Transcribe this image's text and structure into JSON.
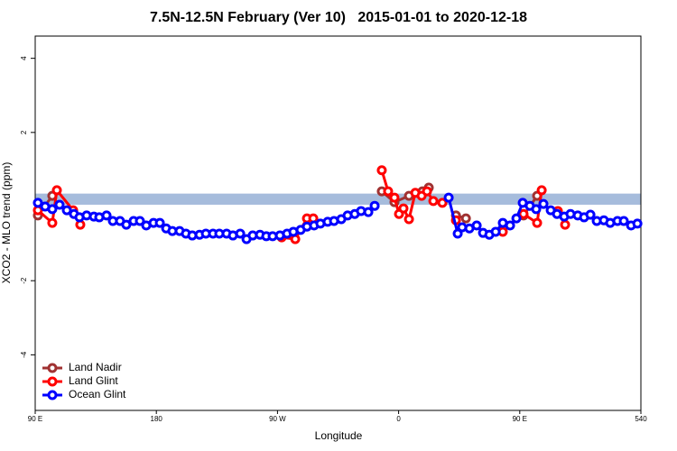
{
  "chart_data": {
    "type": "line",
    "title": "7.5N-12.5N February (Ver 10)   2015-01-01 to 2020-12-18",
    "xlabel": "Longitude",
    "ylabel": "XCO2 - MLO trend (ppm)",
    "xlim": [
      90,
      540
    ],
    "ylim": [
      -5.5,
      4.6
    ],
    "xticks": [
      {
        "value": 90,
        "label": "90 E"
      },
      180,
      {
        "value": 270,
        "label": "90 W"
      },
      {
        "value": 360,
        "label": "0"
      },
      {
        "value": 450,
        "label": "90 E"
      },
      540
    ],
    "yticks": [
      -4,
      -2,
      2,
      4
    ],
    "band": {
      "ymin": 0.05,
      "ymax": 0.35,
      "color": "#a6bcdc"
    },
    "legend": "bottom-left",
    "series": [
      {
        "name": "Land Nadir",
        "color": "#a03232",
        "x": [
          92.0,
          102.7,
          null,
          347.5,
          356.9,
          367.7,
          377.7,
          382.4,
          null,
          402.6,
          410.0,
          null,
          452.8,
          462.9
        ],
        "values": [
          -0.24,
          0.29,
          null,
          0.41,
          0.12,
          0.29,
          0.41,
          0.51,
          null,
          -0.24,
          -0.32,
          null,
          -0.24,
          0.29
        ]
      },
      {
        "name": "Land Glint",
        "color": "#ff0000",
        "x": [
          92.0,
          102.7,
          106.1,
          118.2,
          123.5,
          null,
          273.1,
          283.2,
          291.9,
          296.6,
          null,
          347.5,
          352.2,
          356.9,
          360.3,
          363.6,
          367.7,
          372.4,
          377.1,
          381.1,
          385.8,
          392.5,
          null,
          402.6,
          null,
          437.4,
          null,
          452.8,
          462.9,
          466.3,
          null,
          478.3,
          483.7
        ],
        "values": [
          -0.1,
          -0.44,
          0.44,
          -0.1,
          -0.49,
          null,
          -0.83,
          -0.88,
          -0.32,
          -0.32,
          null,
          0.98,
          0.41,
          0.24,
          -0.2,
          -0.05,
          -0.34,
          0.37,
          0.29,
          0.41,
          0.15,
          0.1,
          null,
          -0.37,
          null,
          -0.68,
          null,
          -0.2,
          -0.44,
          0.44,
          null,
          -0.12,
          -0.49
        ]
      },
      {
        "name": "Ocean Glint",
        "color": "#0000ff",
        "x": [
          92.0,
          97.4,
          102.7,
          108.1,
          113.5,
          118.8,
          122.9,
          128.2,
          133.6,
          137.6,
          143.0,
          147.7,
          153.0,
          157.7,
          163.1,
          167.8,
          172.5,
          177.9,
          182.6,
          187.3,
          191.9,
          197.3,
          202.0,
          206.7,
          212.1,
          216.8,
          222.1,
          226.8,
          232.2,
          236.9,
          242.3,
          247.0,
          251.6,
          257.0,
          261.7,
          266.4,
          271.8,
          277.1,
          281.8,
          287.2,
          291.9,
          297.2,
          301.9,
          307.3,
          312.0,
          317.4,
          322.1,
          327.4,
          332.1,
          337.5,
          342.2,
          null,
          397.2,
          403.9,
          407.2,
          412.6,
          418.0,
          422.7,
          427.4,
          432.1,
          437.4,
          442.8,
          447.5,
          452.2,
          457.5,
          462.2,
          467.6,
          473.0,
          477.7,
          483.0,
          487.7,
          493.1,
          497.8,
          502.5,
          507.2,
          512.5,
          517.2,
          522.6,
          527.3,
          532.7,
          537.4
        ],
        "values": [
          0.1,
          0.0,
          -0.07,
          0.05,
          -0.1,
          -0.2,
          -0.29,
          -0.24,
          -0.27,
          -0.29,
          -0.24,
          -0.39,
          -0.39,
          -0.49,
          -0.39,
          -0.39,
          -0.51,
          -0.44,
          -0.44,
          -0.59,
          -0.66,
          -0.66,
          -0.73,
          -0.78,
          -0.76,
          -0.73,
          -0.73,
          -0.73,
          -0.73,
          -0.78,
          -0.73,
          -0.88,
          -0.78,
          -0.76,
          -0.8,
          -0.8,
          -0.78,
          -0.73,
          -0.68,
          -0.63,
          -0.54,
          -0.51,
          -0.46,
          -0.41,
          -0.39,
          -0.34,
          -0.24,
          -0.2,
          -0.12,
          -0.15,
          0.02,
          null,
          0.24,
          -0.73,
          -0.56,
          -0.59,
          -0.51,
          -0.71,
          -0.76,
          -0.68,
          -0.44,
          -0.51,
          -0.32,
          0.1,
          0.02,
          -0.07,
          0.07,
          -0.1,
          -0.2,
          -0.27,
          -0.2,
          -0.24,
          -0.29,
          -0.22,
          -0.39,
          -0.37,
          -0.44,
          -0.39,
          -0.39,
          -0.51,
          -0.46
        ]
      }
    ]
  }
}
